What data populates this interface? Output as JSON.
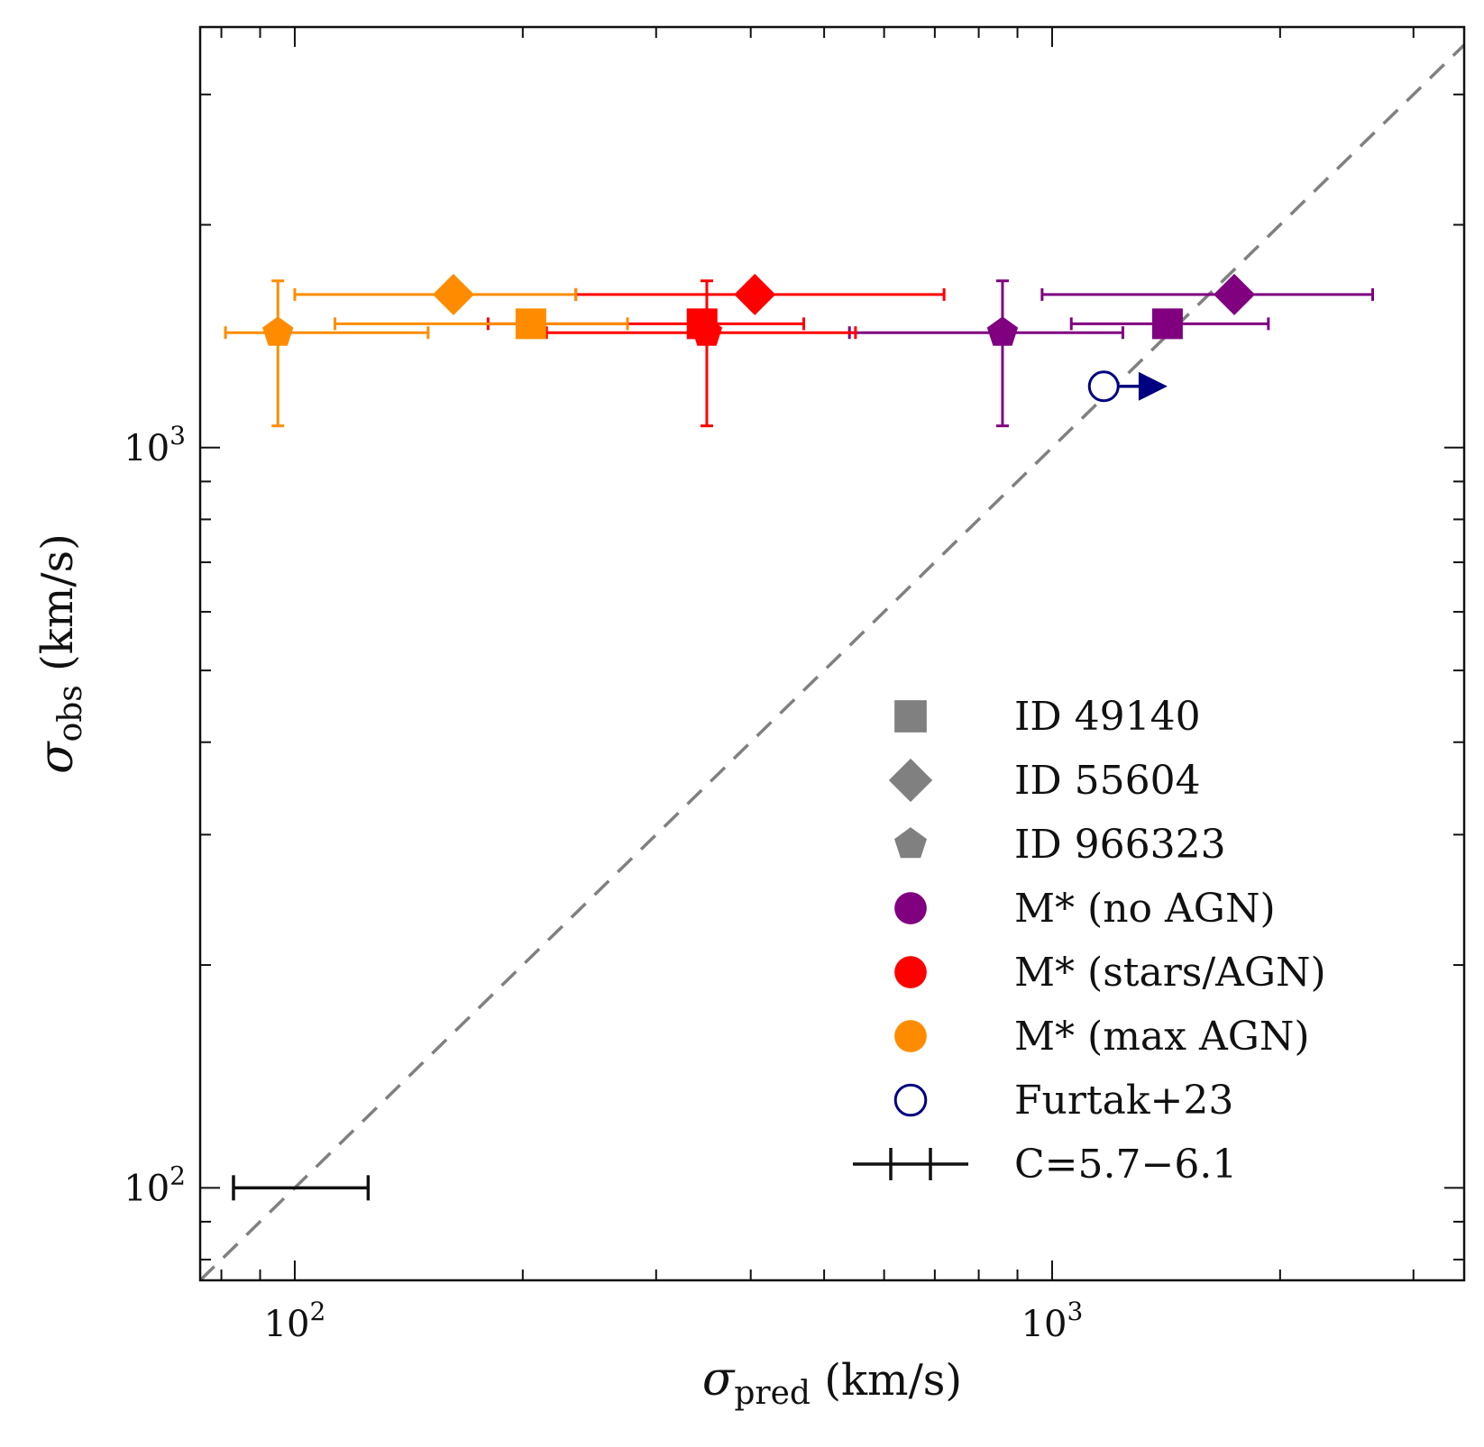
{
  "chart_data": {
    "type": "scatter",
    "xlabel": "σpred (km/s)",
    "ylabel": "σobs (km/s)",
    "x_scale": "log",
    "y_scale": "log",
    "xlim": [
      75,
      3500
    ],
    "ylim": [
      75,
      3700
    ],
    "x_ticks": [
      {
        "base": "10",
        "exp": "2",
        "value": 100
      },
      {
        "base": "10",
        "exp": "3",
        "value": 1000
      }
    ],
    "y_ticks": [
      {
        "base": "10",
        "exp": "2",
        "value": 100
      },
      {
        "base": "10",
        "exp": "3",
        "value": 1000
      }
    ],
    "one_to_one_line": {
      "style": "dashed",
      "color": "#808080"
    },
    "colors": {
      "no_agn": "#800080",
      "stars_agn": "#ff0000",
      "max_agn": "#ff8c00",
      "furtak": "#000080",
      "legend_marker": "#808080",
      "axes": "#111111"
    },
    "series": [
      {
        "source": "ID 49140",
        "mstar": "M* (no AGN)",
        "marker": "square",
        "color_key": "no_agn",
        "x": 1420,
        "y": 1470,
        "xerr": [
          1060,
          1930
        ],
        "yerr": [
          1440,
          1500
        ]
      },
      {
        "source": "ID 55604",
        "mstar": "M* (no AGN)",
        "marker": "diamond",
        "color_key": "no_agn",
        "x": 1740,
        "y": 1610,
        "xerr": [
          970,
          2650
        ],
        "yerr": [
          1560,
          1660
        ]
      },
      {
        "source": "ID 966323",
        "mstar": "M* (no AGN)",
        "marker": "pentagon",
        "color_key": "no_agn",
        "x": 860,
        "y": 1430,
        "xerr": [
          540,
          1240
        ],
        "yerr": [
          1070,
          1680
        ]
      },
      {
        "source": "ID 49140",
        "mstar": "M* (stars/AGN)",
        "marker": "square",
        "color_key": "stars_agn",
        "x": 345,
        "y": 1470,
        "xerr": [
          180,
          470
        ],
        "yerr": [
          1440,
          1500
        ]
      },
      {
        "source": "ID 55604",
        "mstar": "M* (stars/AGN)",
        "marker": "diamond",
        "color_key": "stars_agn",
        "x": 405,
        "y": 1610,
        "xerr": [
          235,
          720
        ],
        "yerr": [
          1560,
          1660
        ]
      },
      {
        "source": "ID 966323",
        "mstar": "M* (stars/AGN)",
        "marker": "pentagon",
        "color_key": "stars_agn",
        "x": 350,
        "y": 1430,
        "xerr": [
          215,
          550
        ],
        "yerr": [
          1070,
          1680
        ]
      },
      {
        "source": "ID 49140",
        "mstar": "M* (max AGN)",
        "marker": "square",
        "color_key": "max_agn",
        "x": 205,
        "y": 1470,
        "xerr": [
          113,
          275
        ],
        "yerr": [
          1440,
          1500
        ]
      },
      {
        "source": "ID 55604",
        "mstar": "M* (max AGN)",
        "marker": "diamond",
        "color_key": "max_agn",
        "x": 162,
        "y": 1610,
        "xerr": [
          100,
          235
        ],
        "yerr": [
          1560,
          1660
        ]
      },
      {
        "source": "ID 966323",
        "mstar": "M* (max AGN)",
        "marker": "pentagon",
        "color_key": "max_agn",
        "x": 95,
        "y": 1430,
        "xerr": [
          81,
          150
        ],
        "yerr": [
          1070,
          1680
        ]
      },
      {
        "source": "Furtak+23",
        "marker": "open-circle",
        "color_key": "furtak",
        "x": 1170,
        "y": 1210,
        "lower_limit_x": true,
        "arrow_to": 1420
      }
    ],
    "systematic_bar": {
      "label": "C=5.7−6.1",
      "y": 100,
      "x_range": [
        83,
        125
      ]
    },
    "legend": {
      "position": "lower-right",
      "entries": [
        {
          "label": "ID 49140",
          "marker": "square",
          "color_key": "legend_marker"
        },
        {
          "label": "ID 55604",
          "marker": "diamond",
          "color_key": "legend_marker"
        },
        {
          "label": "ID 966323",
          "marker": "pentagon",
          "color_key": "legend_marker"
        },
        {
          "label": "M* (no AGN)",
          "marker": "circle",
          "color_key": "no_agn"
        },
        {
          "label": "M* (stars/AGN)",
          "marker": "circle",
          "color_key": "stars_agn"
        },
        {
          "label": "M* (max AGN)",
          "marker": "circle",
          "color_key": "max_agn"
        },
        {
          "label": "Furtak+23",
          "marker": "open-circle",
          "color_key": "furtak"
        },
        {
          "label": "C=5.7−6.1",
          "marker": "errorbar",
          "color_key": "axes"
        }
      ]
    }
  }
}
